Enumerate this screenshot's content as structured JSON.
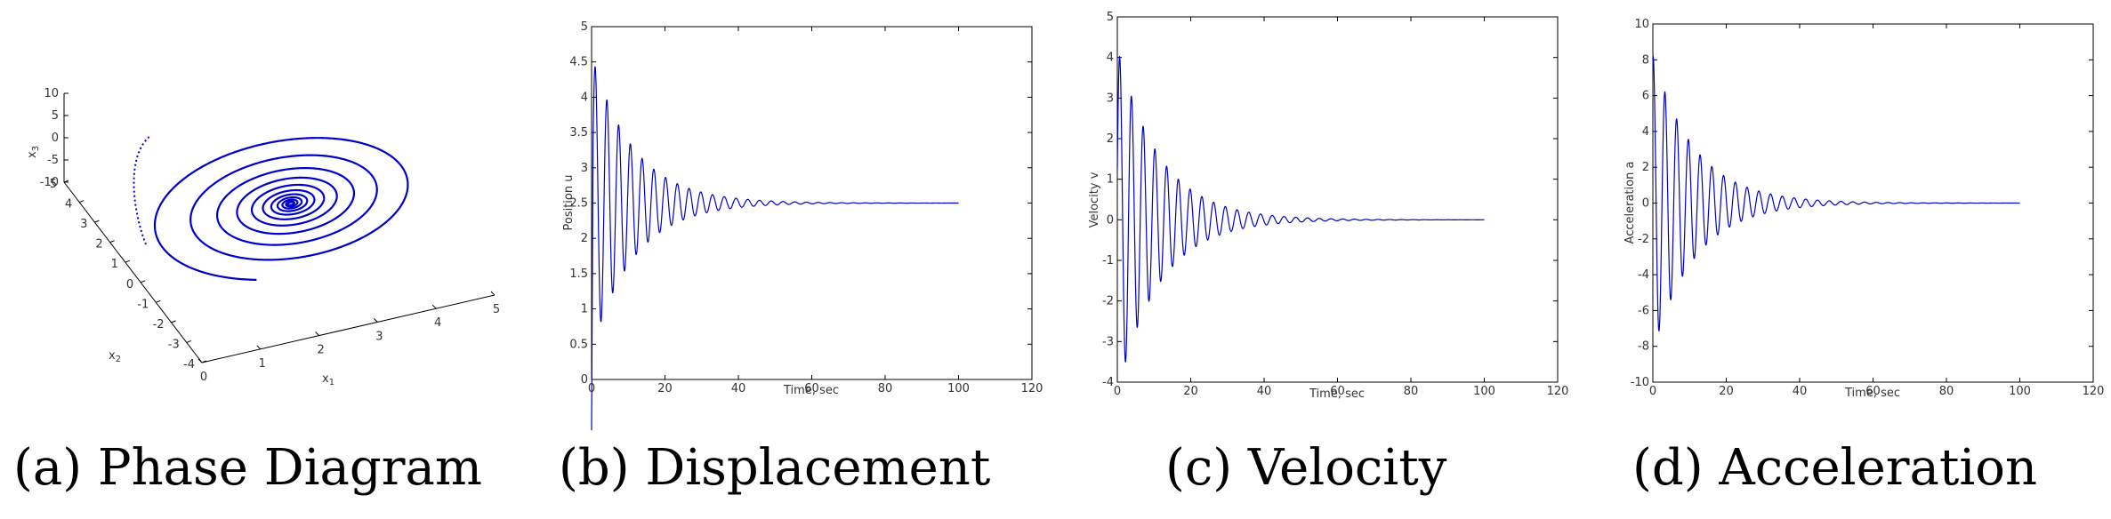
{
  "captions": {
    "a": "(a)  Phase Diagram",
    "b": "(b)  Displacement",
    "c": "(c)  Velocity",
    "d": "(d)  Acceleration"
  },
  "colors": {
    "line": "#0000cc",
    "axis": "#000000"
  },
  "chart_data": [
    {
      "id": "phase",
      "type": "scatter",
      "subtype": "3d-phase-trajectory",
      "title": "",
      "xlabel": "x1",
      "ylabel": "x2",
      "zlabel": "x3",
      "xlim": [
        0,
        5
      ],
      "ylim": [
        -4,
        5
      ],
      "zlim": [
        -10,
        10
      ],
      "xticks": [
        "0",
        "1",
        "2",
        "3",
        "4",
        "5"
      ],
      "yticks": [
        "-4",
        "-3",
        "-2",
        "-1",
        "0",
        "1",
        "2",
        "3",
        "4",
        "5"
      ],
      "zticks": [
        "-10",
        "-5",
        "0",
        "5",
        "10"
      ],
      "equilibrium": {
        "x1": 2.5,
        "x2": 0,
        "x3": 0
      },
      "caption": "(a)  Phase Diagram"
    },
    {
      "id": "displacement",
      "type": "line",
      "title": "",
      "xlabel": "Time, sec",
      "ylabel": "Position u",
      "xlim": [
        0,
        120
      ],
      "ylim": [
        0,
        5
      ],
      "xticks": [
        0,
        20,
        40,
        60,
        80,
        100,
        120
      ],
      "yticks": [
        0,
        0.5,
        1,
        1.5,
        2,
        2.5,
        3,
        3.5,
        4,
        4.5,
        5
      ],
      "t_end": 100,
      "equilibrium": 2.5,
      "first_peak": 4.6,
      "first_trough": 0.7,
      "period_sec": 3.2,
      "caption": "(b)  Displacement"
    },
    {
      "id": "velocity",
      "type": "line",
      "title": "",
      "xlabel": "Time, sec",
      "ylabel": "Velocity v",
      "xlim": [
        0,
        120
      ],
      "ylim": [
        -4,
        5
      ],
      "xticks": [
        0,
        20,
        40,
        60,
        80,
        100,
        120
      ],
      "yticks": [
        -4,
        -3,
        -2,
        -1,
        0,
        1,
        2,
        3,
        4,
        5
      ],
      "t_end": 100,
      "equilibrium": 0,
      "first_peak": 4.6,
      "first_trough": -3.9,
      "period_sec": 3.2,
      "caption": "(c)  Velocity"
    },
    {
      "id": "acceleration",
      "type": "line",
      "title": "",
      "xlabel": "Time, sec",
      "ylabel": "Acceleration a",
      "xlim": [
        0,
        120
      ],
      "ylim": [
        -10,
        10
      ],
      "xticks": [
        0,
        20,
        40,
        60,
        80,
        100,
        120
      ],
      "yticks": [
        -10,
        -8,
        -6,
        -4,
        -2,
        0,
        2,
        4,
        6,
        8,
        10
      ],
      "t_end": 100,
      "equilibrium": 0,
      "first_peak": 8.0,
      "first_trough": -8.5,
      "period_sec": 3.2,
      "caption": "(d)  Acceleration"
    }
  ]
}
